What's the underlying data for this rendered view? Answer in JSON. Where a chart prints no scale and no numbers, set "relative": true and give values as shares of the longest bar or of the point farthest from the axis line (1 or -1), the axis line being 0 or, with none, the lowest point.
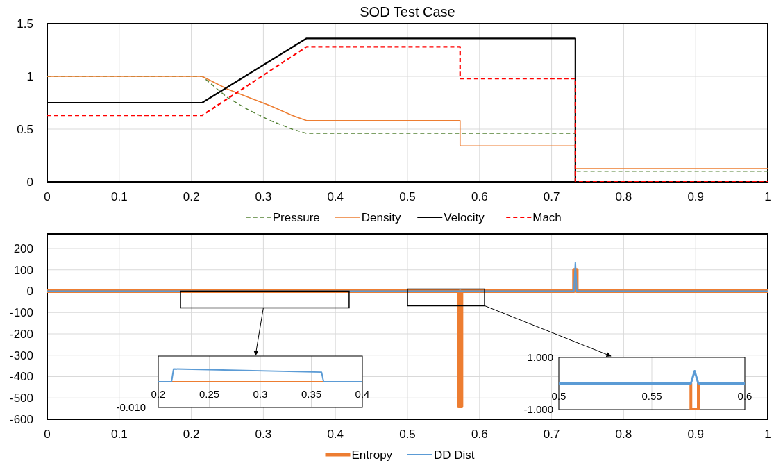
{
  "chart_data": [
    {
      "type": "line",
      "title": "SOD Test Case",
      "xlim": [
        0,
        1
      ],
      "xticks": [
        0,
        0.1,
        0.2,
        0.3,
        0.4,
        0.5,
        0.6,
        0.7,
        0.8,
        0.9,
        1
      ],
      "ylim": [
        0,
        1.5
      ],
      "yticks": [
        0,
        0.5,
        1,
        1.5
      ],
      "grid": true,
      "legend": "bottom",
      "series": [
        {
          "name": "Pressure",
          "color": "#548235",
          "line_style": "dashed",
          "x": [
            0,
            0.215,
            0.25,
            0.28,
            0.31,
            0.34,
            0.36,
            0.733,
            0.733,
            1
          ],
          "values": [
            1,
            1,
            0.8,
            0.68,
            0.58,
            0.5,
            0.46,
            0.46,
            0.1,
            0.1
          ]
        },
        {
          "name": "Density",
          "color": "#ed7d31",
          "line_style": "solid",
          "x": [
            0,
            0.215,
            0.25,
            0.28,
            0.31,
            0.34,
            0.36,
            0.573,
            0.573,
            0.733,
            0.733,
            1
          ],
          "values": [
            1,
            1,
            0.88,
            0.8,
            0.72,
            0.63,
            0.58,
            0.58,
            0.34,
            0.34,
            0.125,
            0.125
          ]
        },
        {
          "name": "Velocity",
          "color": "#000000",
          "line_style": "solid",
          "x": [
            0,
            0.215,
            0.36,
            0.733,
            0.733,
            1
          ],
          "values": [
            0.75,
            0.75,
            1.36,
            1.36,
            0,
            0
          ]
        },
        {
          "name": "Mach",
          "color": "#ff0000",
          "line_style": "dashed",
          "x": [
            0,
            0.215,
            0.36,
            0.573,
            0.573,
            0.733,
            0.733,
            1
          ],
          "values": [
            0.63,
            0.63,
            1.28,
            1.28,
            0.98,
            0.98,
            0,
            0
          ]
        }
      ]
    },
    {
      "type": "line",
      "xlim": [
        0,
        1
      ],
      "xticks": [
        0,
        0.1,
        0.2,
        0.3,
        0.4,
        0.5,
        0.6,
        0.7,
        0.8,
        0.9,
        1
      ],
      "ylim": [
        -600,
        200
      ],
      "yticks": [
        -600,
        -500,
        -400,
        -300,
        -200,
        -100,
        0,
        100,
        200
      ],
      "grid": true,
      "legend": "bottom",
      "series": [
        {
          "name": "Entropy",
          "color": "#ed7d31",
          "line_style": "solid",
          "x": [
            0,
            0.571,
            0.571,
            0.575,
            0.575,
            0.731,
            0.731,
            0.735,
            0.735,
            1
          ],
          "values": [
            0,
            0,
            -540,
            -540,
            0,
            0,
            100,
            100,
            0,
            0
          ]
        },
        {
          "name": "DD Dist",
          "color": "#5b9bd5",
          "line_style": "solid",
          "x": [
            0,
            0.731,
            0.733,
            0.735,
            1
          ],
          "values": [
            0,
            0,
            135,
            0,
            0
          ]
        }
      ]
    },
    {
      "type": "line",
      "relative": true,
      "xlim": [
        0.2,
        0.4
      ],
      "xticks": [
        0.2,
        0.25,
        0.3,
        0.35,
        0.4
      ],
      "annotations": [
        "-0.010"
      ],
      "grid": "x",
      "legend": false,
      "series": [
        {
          "color": "#ed7d31",
          "line_style": "solid",
          "x": [
            0.2,
            0.4
          ],
          "values": [
            0,
            0
          ]
        },
        {
          "color": "#5b9bd5",
          "line_style": "solid",
          "x": [
            0.2,
            0.213,
            0.215,
            0.36,
            0.362,
            0.4
          ],
          "values": [
            0,
            0,
            1,
            0.75,
            0,
            0
          ]
        }
      ]
    },
    {
      "type": "line",
      "xlim": [
        0.5,
        0.6
      ],
      "xticks": [
        0.5,
        0.55,
        0.6
      ],
      "ylim": [
        -1,
        1
      ],
      "yticks": [
        {
          "value": -1,
          "label": "-1.000"
        },
        {
          "value": 1,
          "label": "1.000"
        }
      ],
      "grid": "x",
      "legend": false,
      "series": [
        {
          "color": "#ed7d31",
          "line_style": "solid",
          "x": [
            0.5,
            0.571,
            0.571,
            0.575,
            0.575,
            0.6
          ],
          "values": [
            0,
            0,
            -1,
            -1,
            0,
            0
          ]
        },
        {
          "color": "#5b9bd5",
          "line_style": "solid",
          "x": [
            0.5,
            0.571,
            0.573,
            0.575,
            0.6
          ],
          "values": [
            0,
            0,
            0.48,
            0,
            0
          ]
        }
      ]
    }
  ]
}
